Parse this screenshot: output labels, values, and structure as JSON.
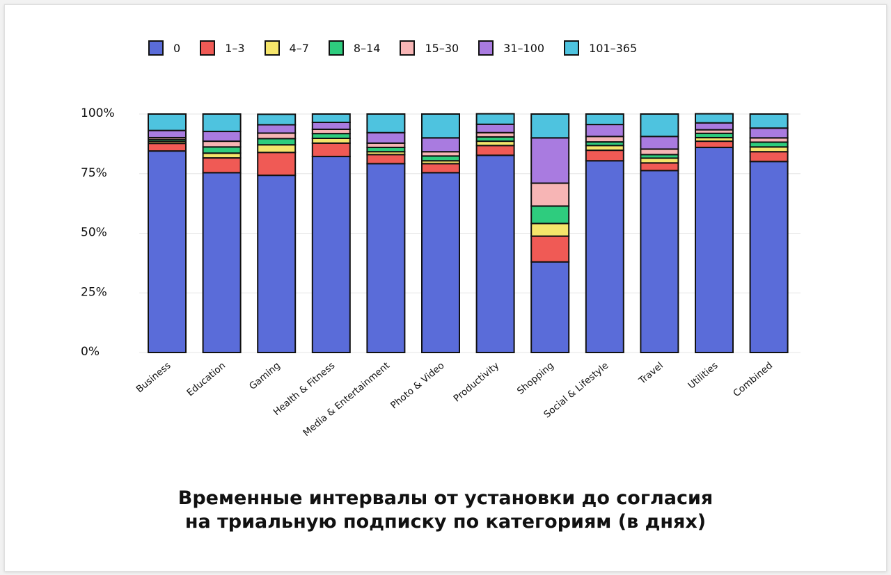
{
  "chart_data": {
    "type": "bar",
    "stacked": true,
    "title": "Временные интервалы от установки до согласия на триальную подписку по категориям (в днях)",
    "title_lines": [
      "Временные интервалы от установки до согласия",
      "на триальную подписку по категориям (в днях)"
    ],
    "xlabel": "",
    "ylabel": "",
    "ylim": [
      0,
      100
    ],
    "yticks": [
      "0%",
      "25%",
      "50%",
      "75%",
      "100%"
    ],
    "grid": true,
    "legend_position": "top",
    "categories": [
      "Business",
      "Education",
      "Gaming",
      "Health & Fitness",
      "Media & Entertainment",
      "Photo & Video",
      "Productivity",
      "Shopping",
      "Social & Lifestyle",
      "Travel",
      "Utilities",
      "Combined"
    ],
    "series": [
      {
        "name": "0",
        "color": "#5a6cd9",
        "values": [
          84.5,
          75.4,
          74.3,
          82.2,
          79.2,
          75.4,
          82.7,
          38.0,
          80.4,
          76.3,
          86.0,
          80.1
        ]
      },
      {
        "name": "1–3",
        "color": "#f05a55",
        "values": [
          3.2,
          6.2,
          9.6,
          5.6,
          3.8,
          3.8,
          4.1,
          10.8,
          4.4,
          3.2,
          2.6,
          4.1
        ]
      },
      {
        "name": "4–7",
        "color": "#f5e56b",
        "values": [
          0.8,
          2.0,
          3.2,
          2.0,
          1.2,
          1.2,
          1.8,
          5.3,
          2.0,
          2.0,
          1.5,
          2.0
        ]
      },
      {
        "name": "8–14",
        "color": "#2ecc7e",
        "values": [
          0.8,
          2.6,
          2.6,
          2.0,
          1.8,
          2.0,
          1.8,
          7.3,
          1.5,
          1.5,
          1.8,
          2.0
        ]
      },
      {
        "name": "15–30",
        "color": "#f7b5b5",
        "values": [
          0.8,
          2.4,
          2.3,
          1.8,
          1.8,
          1.8,
          1.8,
          9.6,
          2.3,
          2.3,
          1.5,
          1.8
        ]
      },
      {
        "name": "31–100",
        "color": "#a97be0",
        "values": [
          3.0,
          4.1,
          3.5,
          2.9,
          4.4,
          5.8,
          3.5,
          19.0,
          5.0,
          5.3,
          2.9,
          4.1
        ]
      },
      {
        "name": "101–365",
        "color": "#4ec3df",
        "values": [
          6.9,
          7.3,
          4.4,
          3.5,
          7.8,
          10.0,
          4.4,
          10.0,
          4.4,
          9.4,
          3.8,
          5.9
        ]
      }
    ]
  }
}
